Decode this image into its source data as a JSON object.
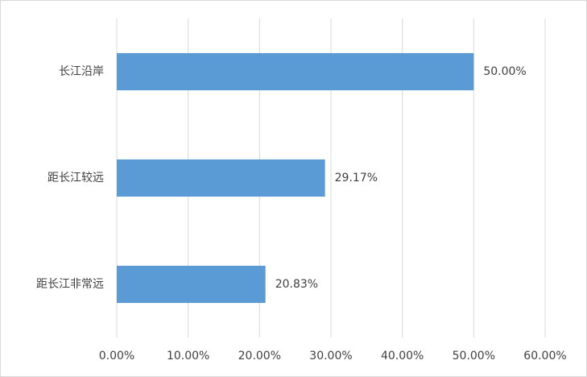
{
  "chart_data": {
    "type": "bar",
    "orientation": "horizontal",
    "categories": [
      "长江沿岸",
      "距长江较远",
      "距长江非常远"
    ],
    "values": [
      50,
      29.17,
      20.83
    ],
    "value_labels": [
      "50.00%",
      "29.17%",
      "20.83%"
    ],
    "color": "#5b9bd5",
    "xlim": [
      0,
      60
    ],
    "xticks": [
      {
        "value": 0,
        "label": "0.00%"
      },
      {
        "value": 10,
        "label": "10.00%"
      },
      {
        "value": 20,
        "label": "20.00%"
      },
      {
        "value": 30,
        "label": "30.00%"
      },
      {
        "value": 40,
        "label": "40.00%"
      },
      {
        "value": 50,
        "label": "50.00%"
      },
      {
        "value": 60,
        "label": "60.00%"
      }
    ],
    "grid": true
  }
}
